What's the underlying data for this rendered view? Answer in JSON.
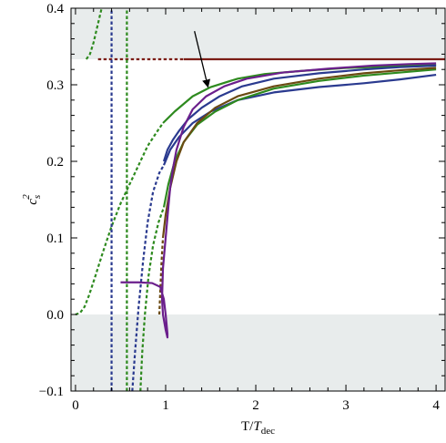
{
  "chart_data": {
    "type": "line",
    "title": "",
    "xlabel": "T/T_dec",
    "xlabel_parts": {
      "main": "T/",
      "italic": "T",
      "sub": "dec"
    },
    "ylabel": "c_s^2",
    "ylabel_parts": {
      "base": "c",
      "sub": "s",
      "sup": "2"
    },
    "xlim": [
      -0.05,
      4.1
    ],
    "ylim": [
      -0.1,
      0.4
    ],
    "x_ticks": [
      0,
      1,
      2,
      3,
      4
    ],
    "x_tick_labels": [
      "0",
      "1",
      "2",
      "3",
      "4"
    ],
    "y_ticks": [
      -0.1,
      0.0,
      0.1,
      0.2,
      0.3,
      0.4
    ],
    "y_tick_labels": [
      "−0.1",
      "0.0",
      "0.1",
      "0.2",
      "0.3",
      "0.4"
    ],
    "shaded_regions": [
      {
        "y_from": 0.3333,
        "y_to": 0.4,
        "color": "#e8ecec"
      },
      {
        "y_from": -0.1,
        "y_to": 0.0,
        "color": "#e8ecec"
      }
    ],
    "annotation_arrow": {
      "from": [
        1.32,
        0.37
      ],
      "to": [
        1.47,
        0.297
      ]
    },
    "series": [
      {
        "color": "#7b1d16",
        "style": "dashed",
        "x": [
          0.25,
          0.4,
          0.55,
          0.7,
          0.85,
          1.0,
          1.1,
          1.2
        ],
        "y": [
          0.3333,
          0.3333,
          0.3333,
          0.3333,
          0.3333,
          0.3333,
          0.3333,
          0.3333
        ]
      },
      {
        "color": "#7b1d16",
        "style": "solid",
        "x": [
          1.2,
          2.0,
          3.0,
          4.0,
          4.1
        ],
        "y": [
          0.3333,
          0.3333,
          0.3333,
          0.3333,
          0.3333
        ]
      },
      {
        "color": "#2e8a1f",
        "style": "dashed",
        "x": [
          0.0,
          0.05,
          0.1,
          0.15,
          0.22,
          0.3,
          0.4,
          0.5,
          0.6,
          0.7,
          0.8,
          0.9,
          0.97
        ],
        "y": [
          0.0,
          0.002,
          0.01,
          0.025,
          0.05,
          0.08,
          0.115,
          0.145,
          0.17,
          0.195,
          0.22,
          0.238,
          0.25
        ]
      },
      {
        "color": "#2e8a1f",
        "style": "solid",
        "x": [
          0.97,
          1.1,
          1.3,
          1.5,
          1.8,
          2.1,
          2.5,
          3.0,
          3.5,
          4.0
        ],
        "y": [
          0.25,
          0.265,
          0.285,
          0.297,
          0.308,
          0.314,
          0.318,
          0.322,
          0.324,
          0.326
        ]
      },
      {
        "color": "#2e8a1f",
        "style": "dashed",
        "x": [
          0.12,
          0.16,
          0.2,
          0.24,
          0.27,
          0.29
        ],
        "y": [
          0.3333,
          0.34,
          0.355,
          0.375,
          0.39,
          0.4
        ]
      },
      {
        "color": "#2a3a8f",
        "style": "dashed",
        "x": [
          0.4,
          0.4
        ],
        "y": [
          -0.1,
          0.4
        ]
      },
      {
        "color": "#2e8a1f",
        "style": "dashed",
        "x": [
          0.57,
          0.57
        ],
        "y": [
          -0.1,
          0.4
        ]
      },
      {
        "color": "#2a3a8f",
        "style": "dashed",
        "x": [
          0.63,
          0.66,
          0.7,
          0.75,
          0.8,
          0.86,
          0.93,
          0.98
        ],
        "y": [
          -0.1,
          -0.05,
          0.01,
          0.07,
          0.12,
          0.16,
          0.185,
          0.195
        ]
      },
      {
        "color": "#2a3a8f",
        "style": "solid",
        "x": [
          0.98,
          1.05,
          1.15,
          1.3,
          1.5,
          1.8,
          2.2,
          2.7,
          3.2,
          3.6,
          4.0
        ],
        "y": [
          0.195,
          0.215,
          0.232,
          0.25,
          0.265,
          0.28,
          0.29,
          0.297,
          0.302,
          0.307,
          0.313
        ]
      },
      {
        "color": "#2e8a1f",
        "style": "dashed",
        "x": [
          0.72,
          0.74,
          0.77,
          0.81,
          0.86,
          0.92,
          0.98
        ],
        "y": [
          -0.1,
          -0.05,
          0.0,
          0.05,
          0.09,
          0.12,
          0.14
        ]
      },
      {
        "color": "#2e8a1f",
        "style": "solid",
        "x": [
          0.98,
          1.03,
          1.1,
          1.2,
          1.35,
          1.55,
          1.8,
          2.2,
          2.7,
          3.2,
          3.6,
          4.0
        ],
        "y": [
          0.14,
          0.17,
          0.2,
          0.225,
          0.248,
          0.265,
          0.28,
          0.295,
          0.305,
          0.312,
          0.316,
          0.32
        ]
      },
      {
        "color": "#6b4a12",
        "style": "dashed",
        "x": [
          0.93,
          0.94,
          0.955,
          0.97
        ],
        "y": [
          0.0,
          0.03,
          0.07,
          0.1
        ]
      },
      {
        "color": "#6b4a12",
        "style": "solid",
        "x": [
          0.97,
          1.0,
          1.05,
          1.12,
          1.2,
          1.35,
          1.55,
          1.8,
          2.2,
          2.7,
          3.2,
          3.6,
          4.0
        ],
        "y": [
          0.1,
          0.13,
          0.165,
          0.2,
          0.225,
          0.25,
          0.27,
          0.285,
          0.298,
          0.308,
          0.315,
          0.319,
          0.322
        ]
      },
      {
        "color": "#2a3a8f",
        "style": "solid",
        "x": [
          0.98,
          1.02,
          1.08,
          1.15,
          1.25,
          1.4,
          1.6,
          1.85,
          2.2,
          2.7,
          3.2,
          3.6,
          4.0
        ],
        "y": [
          0.2,
          0.215,
          0.228,
          0.24,
          0.255,
          0.27,
          0.285,
          0.298,
          0.308,
          0.315,
          0.32,
          0.323,
          0.325
        ]
      },
      {
        "color": "#6b1f8c",
        "style": "solid",
        "x": [
          0.5,
          0.7,
          0.85,
          0.94,
          0.98,
          1.0,
          1.02,
          1.02,
          1.0,
          0.97,
          0.96,
          0.97,
          1.0,
          1.03,
          1.05,
          1.08,
          1.12,
          1.2,
          1.3,
          1.45,
          1.65,
          1.9,
          2.3,
          2.8,
          3.3,
          3.7,
          4.0
        ],
        "y": [
          0.042,
          0.042,
          0.041,
          0.036,
          0.02,
          0.0,
          -0.025,
          -0.03,
          -0.02,
          0.0,
          0.02,
          0.06,
          0.1,
          0.14,
          0.165,
          0.19,
          0.215,
          0.245,
          0.268,
          0.285,
          0.298,
          0.308,
          0.316,
          0.321,
          0.325,
          0.327,
          0.328
        ]
      }
    ]
  }
}
